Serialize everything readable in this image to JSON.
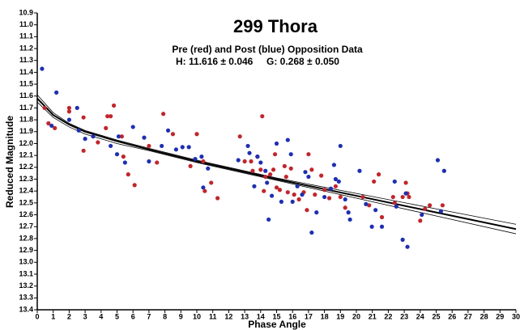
{
  "chart_data": {
    "type": "scatter",
    "title": "299 Thora",
    "subtitle": "Pre (red) and Post (blue) Opposition Data",
    "annotation": "H: 11.616 ± 0.046     G: 0.268 ± 0.050",
    "x_label": "Phase Angle",
    "y_label": "Reduced Magnitude",
    "xlim": [
      0,
      30
    ],
    "ylim": [
      10.9,
      13.4
    ],
    "y_inverted": true,
    "xticks": [
      0,
      1,
      2,
      3,
      4,
      5,
      6,
      7,
      8,
      9,
      10,
      11,
      12,
      13,
      14,
      15,
      16,
      17,
      18,
      19,
      20,
      21,
      22,
      23,
      24,
      25,
      26,
      27,
      28,
      29,
      30
    ],
    "yticks": [
      10.9,
      {
        "value": 11.0,
        "label": "11.0"
      },
      11.1,
      11.2,
      11.3,
      11.4,
      11.5,
      11.6,
      11.7,
      11.8,
      11.9,
      {
        "value": 12.0,
        "label": "12.0"
      },
      12.1,
      12.2,
      12.3,
      12.4,
      12.5,
      12.6,
      12.7,
      12.8,
      12.9,
      {
        "value": 13.0,
        "label": "13.0"
      },
      13.1,
      13.2,
      13.3,
      13.4
    ],
    "series": [
      {
        "color": "#c0262c",
        "x": [
          0.46,
          0.7,
          1.1,
          2.0,
          2.0,
          2.9,
          2.9,
          3.8,
          4.3,
          4.4,
          4.6,
          4.8,
          5.3,
          5.4,
          5.7,
          6.1,
          7.0,
          7.5,
          7.9,
          8.5,
          9.6,
          10.0,
          10.4,
          10.5,
          10.9,
          11.3,
          12.7,
          13.0,
          13.4,
          13.5,
          13.8,
          14.0,
          14.1,
          14.2,
          14.3,
          14.6,
          14.8,
          14.9,
          15.0,
          15.2,
          15.5,
          15.6,
          15.7,
          15.9,
          16.1,
          16.4,
          16.7,
          16.9,
          17.0,
          17.2,
          17.4,
          17.8,
          18.0,
          18.3,
          18.7,
          19.0,
          19.3,
          20.4,
          20.8,
          21.1,
          21.4,
          21.6,
          22.3,
          22.4,
          22.9,
          23.1,
          23.2,
          23.3,
          24.0,
          24.3,
          24.6,
          25.4
        ],
        "values": [
          11.7,
          11.83,
          11.87,
          11.7,
          11.73,
          11.78,
          12.06,
          11.99,
          11.87,
          11.77,
          11.77,
          11.68,
          11.94,
          12.11,
          12.26,
          12.35,
          12.02,
          12.16,
          11.75,
          11.92,
          12.19,
          11.92,
          12.15,
          12.4,
          12.33,
          12.46,
          11.94,
          12.15,
          12.15,
          12.23,
          12.11,
          12.22,
          11.77,
          12.4,
          12.28,
          12.26,
          12.22,
          12.09,
          12.37,
          12.39,
          12.19,
          12.28,
          12.41,
          12.21,
          12.43,
          12.47,
          12.41,
          12.56,
          12.09,
          12.22,
          12.43,
          12.27,
          12.39,
          12.46,
          12.36,
          12.45,
          12.54,
          12.45,
          12.52,
          12.32,
          12.26,
          12.62,
          12.45,
          12.5,
          12.45,
          12.33,
          12.42,
          12.45,
          12.65,
          12.55,
          12.52,
          12.52
        ]
      },
      {
        "color": "#1f2fb0",
        "x": [
          0.3,
          1.2,
          0.9,
          2.0,
          2.5,
          2.6,
          3.0,
          3.5,
          4.6,
          5.1,
          5.0,
          5.5,
          6.0,
          6.7,
          7.0,
          7.8,
          8.2,
          8.7,
          9.1,
          9.5,
          9.9,
          10.3,
          10.4,
          10.7,
          12.6,
          13.2,
          13.3,
          13.6,
          13.8,
          14.0,
          14.3,
          14.4,
          14.5,
          14.7,
          15.0,
          15.3,
          15.7,
          15.9,
          16.0,
          16.3,
          16.6,
          16.8,
          17.0,
          17.2,
          17.5,
          18.0,
          18.4,
          18.6,
          18.7,
          18.9,
          19.0,
          19.3,
          19.5,
          19.6,
          20.2,
          20.6,
          20.97,
          21.2,
          21.6,
          22.4,
          22.5,
          22.9,
          23.1,
          23.2,
          24.1,
          25.1,
          25.3,
          25.5
        ],
        "values": [
          11.37,
          11.57,
          11.85,
          11.8,
          11.7,
          11.89,
          11.96,
          11.94,
          12.02,
          11.94,
          12.09,
          12.16,
          11.86,
          11.95,
          12.15,
          12.02,
          11.89,
          12.05,
          12.03,
          12.03,
          12.13,
          12.11,
          12.37,
          12.21,
          12.14,
          12.02,
          12.08,
          12.36,
          12.11,
          12.16,
          12.23,
          12.33,
          12.64,
          12.44,
          12.0,
          12.49,
          11.97,
          12.09,
          12.49,
          12.36,
          12.43,
          12.24,
          12.28,
          12.75,
          12.58,
          12.45,
          12.38,
          12.18,
          12.3,
          12.32,
          12.02,
          12.47,
          12.58,
          12.64,
          12.23,
          12.51,
          12.7,
          12.56,
          12.7,
          12.32,
          12.53,
          12.81,
          12.42,
          12.87,
          12.6,
          12.14,
          12.57,
          12.23
        ]
      }
    ],
    "fit_x": [
      0,
      1,
      2,
      3,
      5,
      7,
      10,
      15,
      20,
      25,
      30
    ],
    "fit_curves": [
      {
        "color": "#000000",
        "values": [
          11.59,
          11.74,
          11.83,
          11.89,
          11.97,
          12.04,
          12.14,
          12.29,
          12.42,
          12.55,
          12.68
        ]
      },
      {
        "color": "#000000",
        "values": [
          11.62,
          11.76,
          11.84,
          11.9,
          11.98,
          12.05,
          12.15,
          12.3,
          12.44,
          12.58,
          12.72
        ]
      },
      {
        "color": "#000000",
        "values": [
          11.65,
          11.78,
          11.86,
          11.92,
          12.0,
          12.06,
          12.16,
          12.31,
          12.46,
          12.61,
          12.76
        ]
      }
    ]
  }
}
